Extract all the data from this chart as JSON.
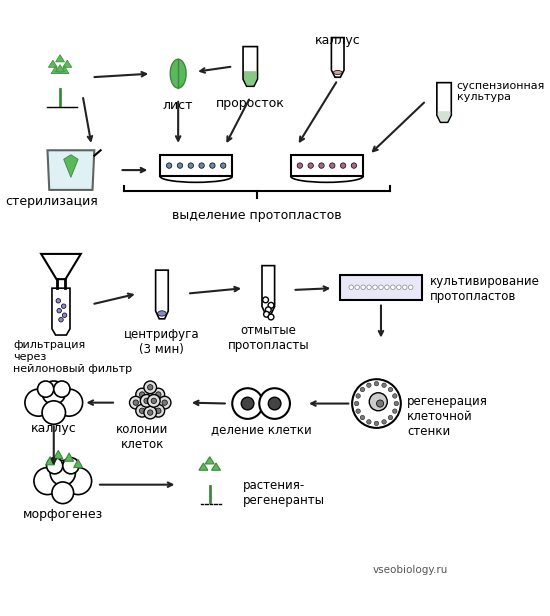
{
  "bg_color": "#ffffff",
  "line_color": "#000000",
  "green_color": "#3a8a3a",
  "light_green": "#5cb85c",
  "light_blue": "#add8e6",
  "gray_color": "#aaaaaa",
  "arrow_color": "#222222",
  "watermark": "vseobiology.ru",
  "labels": {
    "kallus_top": "каллус",
    "list": "лист",
    "prorostok": "проросток",
    "suspenziya": "суспензионная\nкультура",
    "sterilizatsiya": "стерилизация",
    "vydelenie": "выделение протопластов",
    "filtratsiya": "фильтрация\nчерез\nнейлоновый фильтр",
    "tsentrifuga": "центрифуга\n(3 мин)",
    "otmytye": "отмытые\nпротопласты",
    "kultivirovanie": "культивирование\nпротопластов",
    "regeneratsiya": "регенерация\nклеточной\nстенки",
    "kallus_bot": "каллус",
    "kolonii": "колонии\nклеток",
    "delenie": "деление клетки",
    "morfogenez": "морфогенез",
    "rasteniya": "растения-\nрегенеранты"
  }
}
